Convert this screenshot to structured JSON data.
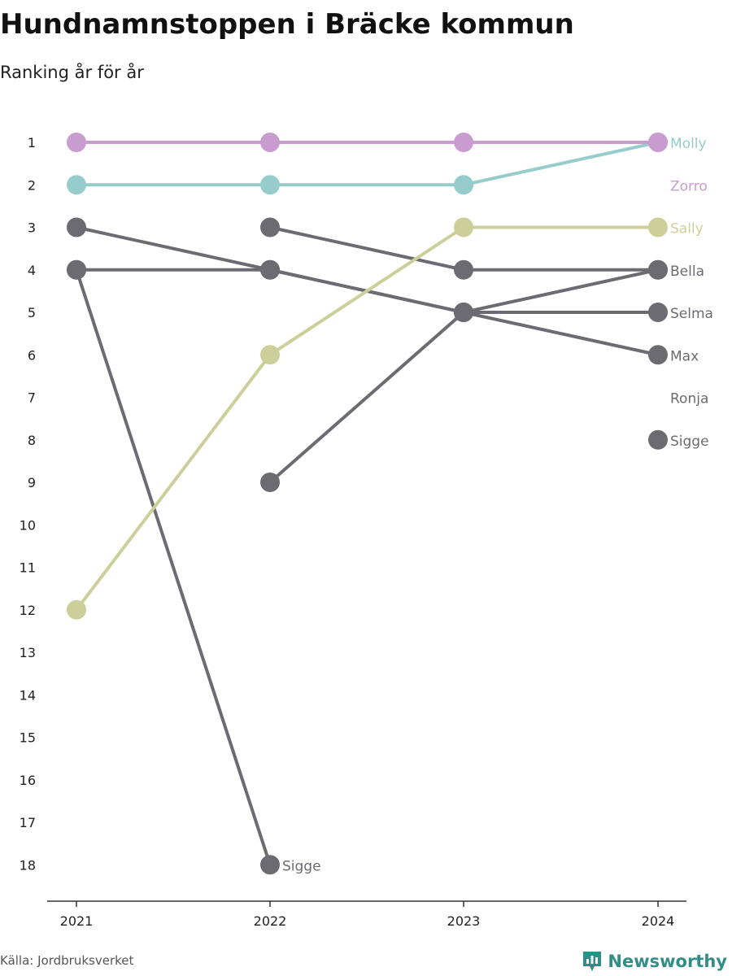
{
  "title": "Hundnamnstoppen i Bräcke kommun",
  "subtitle": "Ranking år för år",
  "source": "Källa: Jordbruksverket",
  "brand": {
    "name": "Newsworthy",
    "icon": "newsworthy-logo-icon",
    "color": "#2f8f86"
  },
  "chart_data": {
    "type": "line",
    "x": [
      "2021",
      "2022",
      "2023",
      "2024"
    ],
    "y_ticks": [
      1,
      2,
      3,
      4,
      5,
      6,
      7,
      8,
      9,
      10,
      11,
      12,
      13,
      14,
      15,
      16,
      17,
      18
    ],
    "y_reversed": true,
    "grid": false,
    "series": [
      {
        "name": "Zorro",
        "color": "#c99ccf",
        "ranks": [
          1,
          1,
          1,
          1
        ]
      },
      {
        "name": "Molly",
        "color": "#96cdcc",
        "ranks": [
          2,
          2,
          2,
          1
        ]
      },
      {
        "name": "Sally",
        "color": "#cdcf9a",
        "ranks": [
          12,
          6,
          3,
          3
        ]
      },
      {
        "name": "Max",
        "color": "#6c6b72",
        "ranks": [
          3,
          4,
          5,
          6
        ]
      },
      {
        "name": "Bella",
        "color": "#6c6b72",
        "ranks": [
          null,
          3,
          4,
          4
        ]
      },
      {
        "name": "Selma",
        "color": "#6c6b72",
        "ranks": [
          4,
          4,
          5,
          5
        ]
      },
      {
        "name": "Ronja",
        "color": "#6c6b72",
        "ranks": [
          null,
          9,
          5,
          4
        ]
      },
      {
        "name": "Sigge",
        "color": "#6c6b72",
        "ranks": [
          4,
          18,
          null,
          8
        ]
      }
    ],
    "end_labels": [
      {
        "name": "Molly",
        "rank": 1,
        "color": "#96cdcc"
      },
      {
        "name": "Zorro",
        "rank": 2,
        "color": "#c99ccf"
      },
      {
        "name": "Sally",
        "rank": 3,
        "color": "#cdcf9a"
      },
      {
        "name": "Bella",
        "rank": 4,
        "color": "#6c6b72"
      },
      {
        "name": "Selma",
        "rank": 5,
        "color": "#6c6b72"
      },
      {
        "name": "Max",
        "rank": 6,
        "color": "#6c6b72"
      },
      {
        "name": "Ronja",
        "rank": 7,
        "color": "#6c6b72"
      },
      {
        "name": "Sigge",
        "rank": 8,
        "color": "#6c6b72"
      }
    ],
    "point_labels": [
      {
        "name": "Sigge",
        "x": "2022",
        "rank": 18,
        "color": "#6c6b72"
      }
    ]
  }
}
